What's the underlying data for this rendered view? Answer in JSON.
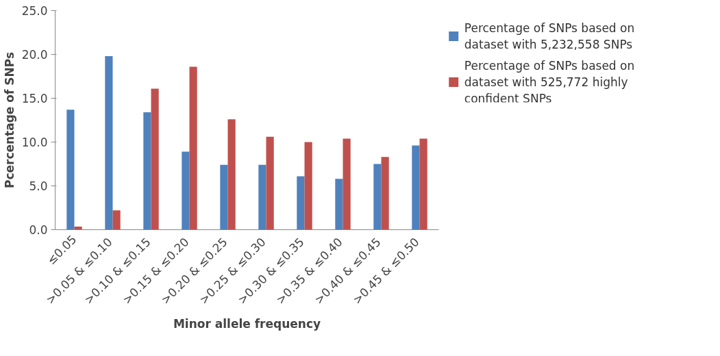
{
  "chart_data": {
    "type": "bar",
    "xlabel": "Minor allele frequency",
    "ylabel": "Pcercentage of SNPs",
    "categories": [
      "≤0.05",
      ">0.05  & ≤0.10",
      ">0.10  & ≤0.15",
      ">0.15  & ≤0.20",
      ">0.20  & ≤0.25",
      ">0.25  & ≤0.30",
      ">0.30  & ≤0.35",
      ">0.35  & ≤0.40",
      ">0.40  & ≤0.45",
      ">0.45  & ≤0.50"
    ],
    "series": [
      {
        "name": "Percentage of SNPs based on dataset with 5,232,558 SNPs",
        "color": "#4f81bd",
        "values": [
          13.7,
          19.8,
          13.4,
          8.9,
          7.4,
          7.4,
          6.1,
          5.8,
          7.5,
          9.6
        ]
      },
      {
        "name": "Percentage of SNPs based on dataset with 525,772 highly confident SNPs",
        "color": "#c0504d",
        "values": [
          0.35,
          2.2,
          16.1,
          18.6,
          12.6,
          10.6,
          10.0,
          10.4,
          8.3,
          10.4
        ]
      }
    ],
    "ylim": [
      0,
      25
    ],
    "yticks": [
      {
        "value": 0,
        "label": "0.0"
      },
      {
        "value": 5,
        "label": "5.0"
      },
      {
        "value": 10,
        "label": "10.0"
      },
      {
        "value": 15,
        "label": "15.0"
      },
      {
        "value": 20,
        "label": "20.0"
      },
      {
        "value": 25,
        "label": "25.0"
      }
    ],
    "grid": false,
    "legend": "right"
  }
}
